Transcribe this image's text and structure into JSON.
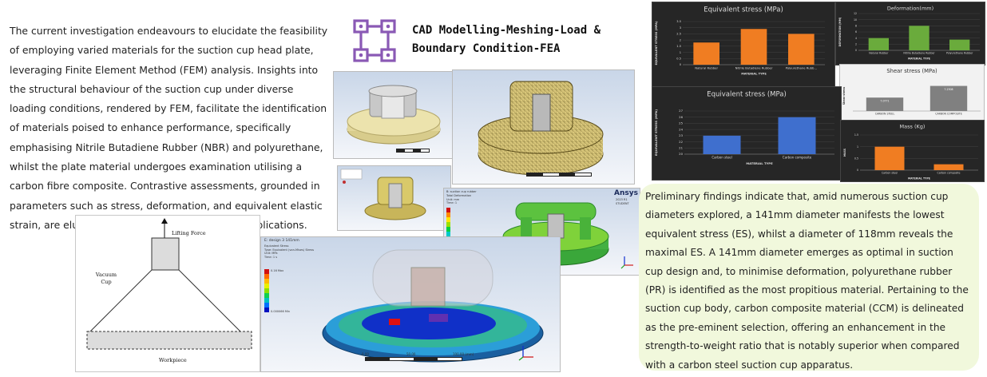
{
  "intro_text": "The current investigation endeavours to elucidate the feasibility of employing varied materials for the suction cup head plate, leveraging Finite Element Method (FEM) analysis. Insights into the structural behaviour of the suction cup under diverse loading conditions, rendered by FEM, facilitate the identification of materials poised to enhance performance, specifically emphasising Nitrile Butadiene Rubber (NBR) and polyurethane, whilst the plate material undergoes examination utilising a carbon fibre composite. Contrastive assessments, grounded in parameters such as stress, deformation, and equivalent elastic strain, are elucidated for these varied material applications.",
  "heading": {
    "line1": "CAD Modelling-Meshing-Load &",
    "line2": "Boundary Condition-FEA"
  },
  "findings_text": "Preliminary findings indicate that, amid numerous suction cup diameters explored, a 141mm diameter manifests the lowest equivalent stress (ES), whilst a diameter of 118mm reveals the maximal ES. A 141mm diameter emerges as optimal in suction cup design and, to minimise deformation, polyurethane rubber (PR) is identified as the most propitious material. Pertaining to the suction cup body, carbon composite material (CCM) is delineated as the pre-eminent selection, offering an enhancement in the strength-to-weight ratio that is notably superior when compared with a carbon steel suction cup apparatus.",
  "diagram": {
    "lifting_force": "Lifting Force",
    "vacuum_cup": "Vacuum\nCup",
    "workpiece": "Workpiece"
  },
  "ansys": {
    "brand": "Ansys",
    "version": "2023 R1",
    "edition": "STUDENT",
    "stress_title": "E: design 3 141mm",
    "stress_type": "Equivalent Stress\nType: Equivalent (von-Mises) Stress\nUnit: MPa\nTime: 1 s",
    "stress_max": "0.16 Max",
    "stress_min": "0.000066 Min",
    "deform_title": "B: suction cup rubber",
    "deform_type": "Total Deformation\nUnit: mm\nTime: 1",
    "scale_0": "0.00",
    "scale_1": "50.00",
    "scale_2": "100.00 (mm)"
  },
  "colors": {
    "orange": "#f07d22",
    "green": "#6aab3c",
    "blue": "#3f6fce",
    "chart_bg": "#262626",
    "findings_bg": "#f1f8dc",
    "icon_purple": "#8a59b5"
  },
  "chart_data": [
    {
      "type": "bar",
      "title": "Equivalent stress (MPa)",
      "ylabel": "EQUIVALENT STRESS (MPA)",
      "xlabel": "MATERIAL TYPE",
      "categories": [
        "Natural Rubber",
        "Nitrile Butadiene Rubber",
        "Polyurethane Rubb..."
      ],
      "values": [
        1.8,
        2.9,
        2.5
      ],
      "ylim": [
        0,
        3.5
      ],
      "yticks": [
        "0",
        "0.5",
        "1",
        "1.5",
        "2",
        "2.5",
        "3",
        "3.5"
      ],
      "color": "#f07d22"
    },
    {
      "type": "bar",
      "title": "Deformation(mm)",
      "ylabel": "DEFORMATION (MM)",
      "xlabel": "MATERIAL TYPE",
      "categories": [
        "Natural Rubber",
        "Nitrile Butadiene Rubber",
        "Polyurethane Rubber"
      ],
      "values": [
        4,
        8,
        3.5
      ],
      "ylim": [
        0,
        12
      ],
      "yticks": [
        "0",
        "2",
        "4",
        "6",
        "8",
        "10",
        "12"
      ],
      "color": "#6aab3c"
    },
    {
      "type": "bar",
      "title": "Shear stress (MPa)",
      "ylabel": "Shear stress",
      "xlabel": "",
      "categories": [
        "CARBON STEEL",
        "CARBON COMPOSITE"
      ],
      "values": [
        7.0771,
        7.2308
      ],
      "data_labels": [
        "7.0771",
        "7.2308"
      ],
      "ylim": [
        6.9,
        7.3
      ],
      "yticks": [],
      "color": "#808080"
    },
    {
      "type": "bar",
      "title": "Equivalent stress (MPa)",
      "ylabel": "EQUIVALENT STRESS (MPA)",
      "xlabel": "MATERIAL TYPE",
      "categories": [
        "Carbon steel",
        "Carbon composite"
      ],
      "values": [
        23,
        26
      ],
      "ylim": [
        20,
        27
      ],
      "yticks": [
        "20",
        "21",
        "22",
        "23",
        "24",
        "25",
        "26",
        "27"
      ],
      "color": "#3f6fce"
    },
    {
      "type": "bar",
      "title": "Mass (Kg)",
      "ylabel": "MASS",
      "xlabel": "MATERIAL TYPE",
      "categories": [
        "Carbon steel",
        "Carbon composite"
      ],
      "values": [
        1.0,
        0.25
      ],
      "ylim": [
        0,
        1.5
      ],
      "yticks": [
        "0",
        "0.5",
        "1",
        "1.5"
      ],
      "color": "#f07d22"
    }
  ]
}
